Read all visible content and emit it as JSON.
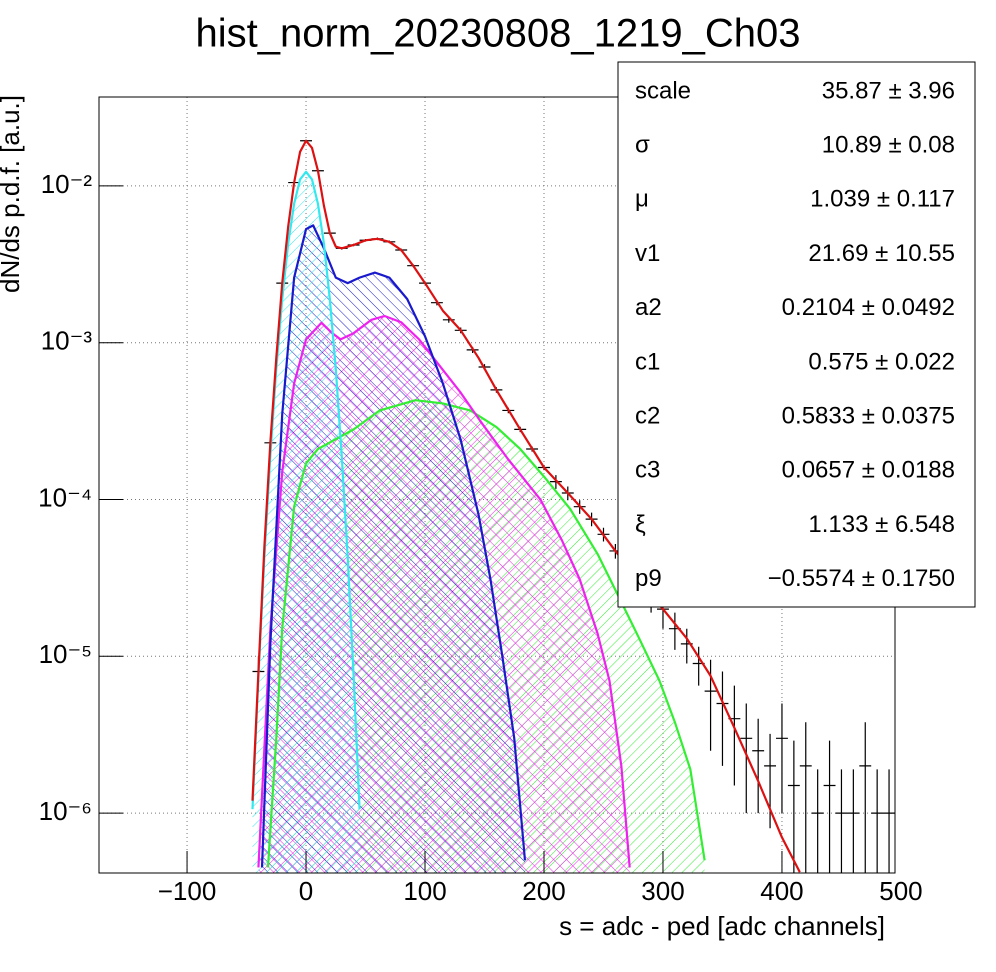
{
  "chart_data": {
    "type": "line",
    "title": "hist_norm_20230808_1219_Ch03",
    "x_label": "s = adc - ped [adc channels]",
    "y_label": "dN/ds p.d.f. [a.u.]",
    "xlim": [
      -174,
      495
    ],
    "ylim": [
      4.15e-07,
      0.0369
    ],
    "ylog": true,
    "grid": true,
    "xticks": [
      {
        "value": -100,
        "label": "−100"
      },
      0,
      100,
      200,
      300,
      400,
      500
    ],
    "yticks": [
      {
        "value": 1e-06,
        "label": "10⁻⁶"
      },
      {
        "value": 1e-05,
        "label": "10⁻⁵"
      },
      {
        "value": 0.0001,
        "label": "10⁻⁴"
      },
      {
        "value": 0.001,
        "label": "10⁻³"
      },
      {
        "value": 0.01,
        "label": "10⁻²"
      }
    ],
    "series": [
      {
        "color": "#33ee33",
        "fill": true,
        "x": [
          -32,
          -25,
          -20,
          -10,
          0,
          10,
          24,
          40,
          62,
          92,
          115,
          138,
          160,
          180,
          200,
          222,
          245,
          264,
          280,
          297,
          310,
          323,
          335
        ],
        "values": [
          4.5e-07,
          3e-06,
          1.5e-05,
          9e-05,
          0.00017,
          0.00021,
          0.00024,
          0.00028,
          0.00037,
          0.00043,
          0.00041,
          0.00037,
          0.00029,
          0.00021,
          0.00014,
          8.7e-05,
          4.5e-05,
          2.3e-05,
          1.3e-05,
          7e-06,
          3.8e-06,
          1.9e-06,
          5e-07
        ]
      },
      {
        "color": "#ee22ee",
        "fill": true,
        "x": [
          -40,
          -30,
          -20,
          -10,
          0,
          13,
          22,
          29,
          40,
          55,
          66,
          80,
          95,
          110,
          130,
          146,
          170,
          197,
          215,
          230,
          245,
          255,
          265,
          272
        ],
        "values": [
          4.5e-07,
          1.5e-05,
          0.00015,
          0.00055,
          0.00105,
          0.00134,
          0.00115,
          0.00105,
          0.00115,
          0.0014,
          0.00148,
          0.00135,
          0.00105,
          0.00075,
          0.00048,
          0.00032,
          0.00018,
          0.0001,
          5.5e-05,
          3.1e-05,
          1.4e-05,
          7e-06,
          2e-06,
          4.5e-07
        ]
      },
      {
        "color": "#1a1acc",
        "fill": true,
        "x": [
          -37,
          -30,
          -20,
          -10,
          0,
          6,
          15,
          25,
          35,
          45,
          58,
          70,
          85,
          100,
          115,
          130,
          145,
          155,
          165,
          175,
          184
        ],
        "values": [
          4.5e-07,
          1.2e-05,
          0.00035,
          0.0026,
          0.0053,
          0.0056,
          0.004,
          0.0026,
          0.0024,
          0.0026,
          0.0028,
          0.0026,
          0.0019,
          0.0011,
          0.00055,
          0.00024,
          8e-05,
          3.1e-05,
          1e-05,
          3e-06,
          5e-07
        ]
      },
      {
        "color": "#33e8ee",
        "fill": true,
        "x": [
          -45,
          -40,
          -35,
          -30,
          -25,
          -20,
          -15,
          -10,
          -5,
          0,
          5,
          10,
          15,
          20,
          25,
          30,
          35,
          40,
          45
        ],
        "values": [
          1.06e-06,
          7.5e-06,
          4.3e-05,
          0.00019,
          0.00068,
          0.0019,
          0.0043,
          0.0077,
          0.011,
          0.0123,
          0.011,
          0.0077,
          0.0043,
          0.0019,
          0.00068,
          0.00019,
          4.3e-05,
          7.5e-06,
          1.06e-06
        ]
      },
      {
        "color": "#000000",
        "x": [
          -40,
          -30,
          -20,
          -10,
          0,
          10,
          20,
          30,
          40,
          50,
          60,
          70,
          80,
          90,
          100,
          110,
          120,
          130,
          140,
          150,
          160,
          170,
          180,
          190,
          200,
          210,
          220,
          230,
          240,
          250,
          260,
          270,
          280,
          290,
          300,
          310,
          320,
          330,
          340,
          350,
          360,
          370,
          380,
          390,
          400,
          410,
          420,
          430,
          440,
          450,
          460,
          470,
          480,
          490
        ],
        "values": [
          8e-06,
          0.00023,
          0.0024,
          0.0105,
          0.0194,
          0.0125,
          0.005,
          0.004,
          0.0042,
          0.0045,
          0.0046,
          0.0044,
          0.0039,
          0.0031,
          0.0024,
          0.0018,
          0.0014,
          0.0012,
          0.0009,
          0.0007,
          0.0005,
          0.00037,
          0.00028,
          0.00021,
          0.00016,
          0.00013,
          0.00011,
          9e-05,
          7.5e-05,
          6e-05,
          4.7e-05,
          3.8e-05,
          3e-05,
          2.5e-05,
          2e-05,
          1.5e-05,
          1.2e-05,
          9e-06,
          6e-06,
          5e-06,
          4e-06,
          3e-06,
          2.5e-06,
          2e-06,
          3e-06,
          1.5e-06,
          2e-06,
          1e-06,
          1.5e-06,
          1e-06,
          1e-06,
          2e-06,
          1e-06,
          1e-06
        ],
        "errors": [
          2e-06,
          1e-05,
          5e-05,
          0.0002,
          0.0003,
          0.00025,
          0.0001,
          8e-05,
          8e-05,
          9e-05,
          9e-05,
          9e-05,
          8e-05,
          6e-05,
          5e-05,
          7e-05,
          6e-05,
          5e-05,
          4e-05,
          3e-05,
          2e-05,
          1.5e-05,
          1.1e-05,
          8e-06,
          6e-06,
          1.3e-05,
          1.1e-05,
          9e-06,
          7.5e-06,
          6e-06,
          5e-06,
          4e-06,
          3e-06,
          6e-06,
          5e-06,
          4e-06,
          3e-06,
          2.5e-06,
          3.5e-06,
          3e-06,
          2.5e-06,
          2e-06,
          1.5e-06,
          1.2e-06,
          2e-06,
          1.4e-06,
          1.8e-06,
          9e-07,
          1.4e-06,
          9e-07,
          9e-07,
          1.8e-06,
          9e-07,
          9e-07
        ]
      },
      {
        "color": "#dd1111",
        "x": [
          -45,
          -40,
          -35,
          -30,
          -25,
          -20,
          -15,
          -10,
          -5,
          0,
          5,
          10,
          15,
          20,
          25,
          30,
          40,
          50,
          60,
          70,
          80,
          90,
          100,
          115,
          130,
          145,
          160,
          180,
          200,
          220,
          240,
          260,
          280,
          300,
          320,
          340,
          360,
          380,
          400,
          415
        ],
        "values": [
          1.2e-06,
          8e-06,
          5e-05,
          0.00023,
          0.0008,
          0.0024,
          0.0055,
          0.0105,
          0.0165,
          0.0194,
          0.0175,
          0.0125,
          0.0075,
          0.005,
          0.0041,
          0.004,
          0.0042,
          0.0045,
          0.0046,
          0.0044,
          0.0039,
          0.0031,
          0.0024,
          0.0016,
          0.0012,
          0.0008,
          0.0005,
          0.00028,
          0.00016,
          0.00011,
          7.5e-05,
          4.7e-05,
          3e-05,
          2e-05,
          1.3e-05,
          7.5e-06,
          3.5e-06,
          1.6e-06,
          7e-07,
          4.2e-07
        ]
      }
    ],
    "stats_box": [
      {
        "name": "scale",
        "value": "35.87 ± 3.96"
      },
      {
        "name": "σ",
        "value": "10.89 ± 0.08"
      },
      {
        "name": "μ",
        "value": "1.039 ± 0.117"
      },
      {
        "name": "v1",
        "value": "21.69 ± 10.55"
      },
      {
        "name": "a2",
        "value": "0.2104 ± 0.0492"
      },
      {
        "name": "c1",
        "value": "0.575 ± 0.022"
      },
      {
        "name": "c2",
        "value": "0.5833 ± 0.0375"
      },
      {
        "name": "c3",
        "value": "0.0657 ± 0.0188"
      },
      {
        "name": "ξ",
        "value": "1.133 ± 6.548"
      },
      {
        "name": "p9",
        "value": "−0.5574 ± 0.1750"
      }
    ]
  }
}
